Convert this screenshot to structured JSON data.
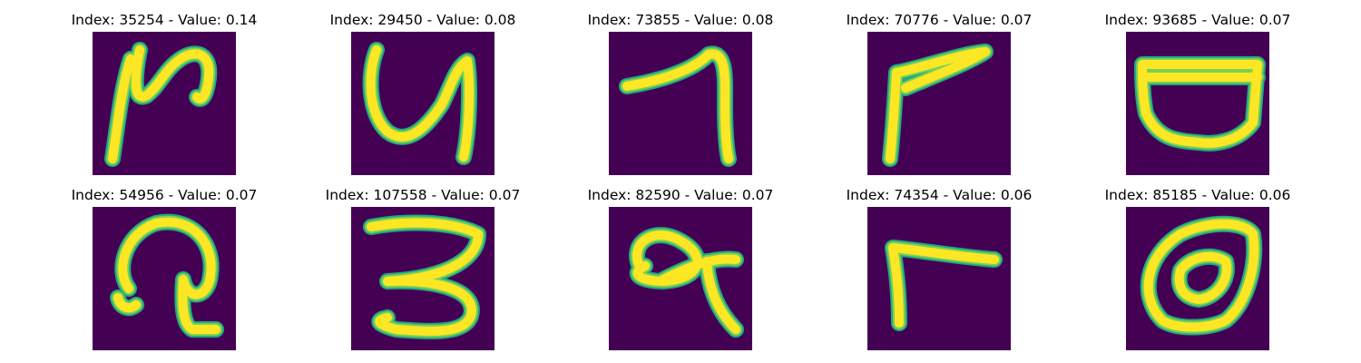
{
  "colors": {
    "background": "#440154",
    "stroke_edge": "#22a884",
    "stroke_mid": "#7ad151",
    "stroke_core": "#fde725"
  },
  "panels": [
    {
      "title": "Index: 35254 - Value: 0.14"
    },
    {
      "title": "Index: 29450 - Value: 0.08"
    },
    {
      "title": "Index: 73855 - Value: 0.08"
    },
    {
      "title": "Index: 70776 - Value: 0.07"
    },
    {
      "title": "Index: 93685 - Value: 0.07"
    },
    {
      "title": "Index: 54956 - Value: 0.07"
    },
    {
      "title": "Index: 107558 - Value: 0.07"
    },
    {
      "title": "Index: 82590 - Value: 0.07"
    },
    {
      "title": "Index: 74354 - Value: 0.06"
    },
    {
      "title": "Index: 85185 - Value: 0.06"
    }
  ]
}
